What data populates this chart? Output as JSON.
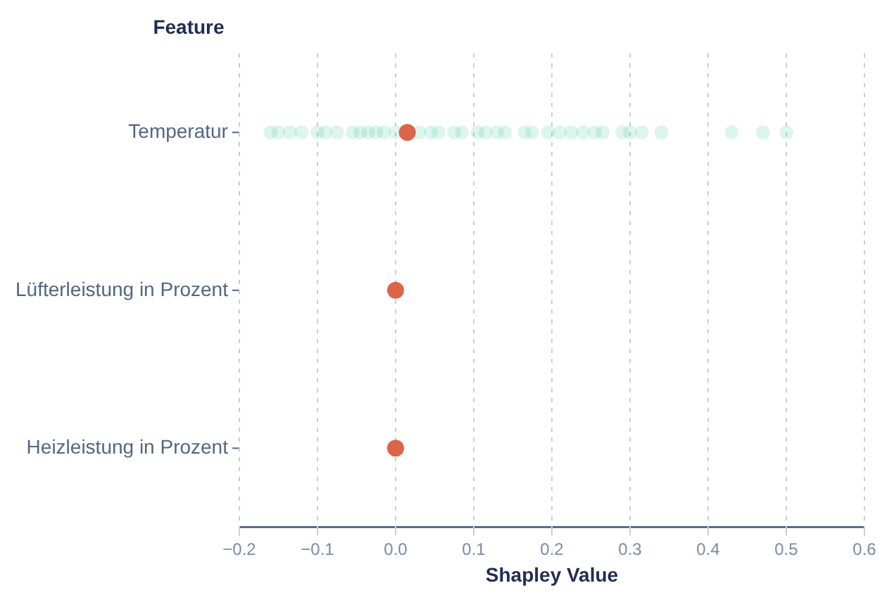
{
  "chart_data": {
    "type": "scatter",
    "orientation": "horizontal",
    "xlabel": "Shapley Value",
    "ylabel": "Feature",
    "categories": [
      "Temperatur",
      "Lüfterleistung in Prozent",
      "Heizleistung in Prozent"
    ],
    "xlim": [
      -0.2,
      0.6
    ],
    "xticks": [
      {
        "value": -0.2,
        "label": "−0.2"
      },
      {
        "value": -0.1,
        "label": "−0.1"
      },
      {
        "value": 0,
        "label": "0.0"
      },
      {
        "value": 0.1,
        "label": "0.1"
      },
      {
        "value": 0.2,
        "label": "0.2"
      },
      {
        "value": 0.3,
        "label": "0.3"
      },
      {
        "value": 0.4,
        "label": "0.4"
      },
      {
        "value": 0.5,
        "label": "0.5"
      },
      {
        "value": 0.6,
        "label": "0.6"
      }
    ],
    "grid": "x",
    "marker": "circle",
    "series": [
      {
        "color": "#3cc99a",
        "x": [
          "Temperatur",
          "Temperatur",
          "Temperatur",
          "Temperatur",
          "Temperatur",
          "Temperatur",
          "Temperatur",
          "Temperatur",
          "Temperatur",
          "Temperatur",
          "Temperatur",
          "Temperatur",
          "Temperatur",
          "Temperatur",
          "Temperatur",
          "Temperatur",
          "Temperatur",
          "Temperatur",
          "Temperatur",
          "Temperatur",
          "Temperatur",
          "Temperatur",
          "Temperatur",
          "Temperatur",
          "Temperatur",
          "Temperatur",
          "Temperatur",
          "Temperatur",
          "Temperatur",
          "Temperatur",
          "Temperatur",
          "Temperatur",
          "Temperatur",
          "Temperatur",
          "Temperatur",
          "Temperatur",
          "Temperatur"
        ],
        "values": [
          -0.16,
          -0.15,
          -0.135,
          -0.12,
          -0.1,
          -0.09,
          -0.075,
          -0.055,
          -0.045,
          -0.035,
          -0.025,
          -0.015,
          0.0,
          0.03,
          0.045,
          0.055,
          0.075,
          0.085,
          0.105,
          0.115,
          0.13,
          0.14,
          0.165,
          0.175,
          0.195,
          0.21,
          0.225,
          0.24,
          0.255,
          0.265,
          0.29,
          0.3,
          0.315,
          0.34,
          0.43,
          0.47,
          0.5
        ]
      },
      {
        "color": "#dc6447",
        "values": [
          0.015,
          0.0,
          0.0
        ]
      }
    ]
  }
}
